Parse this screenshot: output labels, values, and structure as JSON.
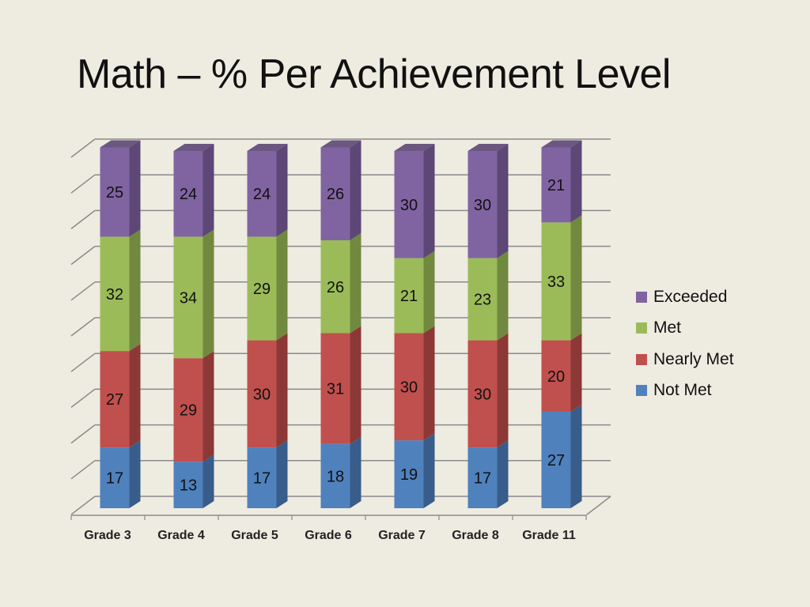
{
  "title": "Math – % Per Achievement Level",
  "chart_data": {
    "type": "bar",
    "stacked": true,
    "three_d": true,
    "title": "Math – % Per Achievement Level",
    "categories": [
      "Grade 3",
      "Grade 4",
      "Grade 5",
      "Grade 6",
      "Grade 7",
      "Grade 8",
      "Grade 11"
    ],
    "series": [
      {
        "name": "Not Met",
        "color": "#4f81bd",
        "side": "#385d8a",
        "values": [
          17,
          13,
          17,
          18,
          19,
          17,
          27
        ]
      },
      {
        "name": "Nearly Met",
        "color": "#c0504d",
        "side": "#8c3836",
        "values": [
          27,
          29,
          30,
          31,
          30,
          30,
          20
        ]
      },
      {
        "name": "Met",
        "color": "#9bbb59",
        "side": "#71893f",
        "values": [
          32,
          34,
          29,
          26,
          21,
          23,
          33
        ]
      },
      {
        "name": "Exceeded",
        "color": "#8064a2",
        "side": "#5c4776",
        "values": [
          25,
          24,
          24,
          26,
          30,
          30,
          21
        ]
      }
    ],
    "legend_order": [
      "Exceeded",
      "Met",
      "Nearly Met",
      "Not Met"
    ],
    "legend_position": "right",
    "ylim": [
      0,
      100
    ],
    "grid": true,
    "xlabel": "",
    "ylabel": ""
  }
}
